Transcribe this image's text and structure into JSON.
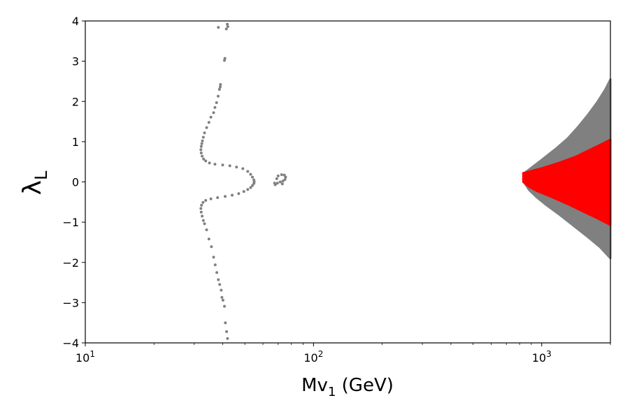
{
  "chart_data": {
    "type": "scatter",
    "xscale": "log",
    "xlim": [
      10,
      2000
    ],
    "ylim": [
      -4,
      4
    ],
    "xlabel_main": "Mv",
    "xlabel_sub": "1",
    "xlabel_unit": " (GeV)",
    "ylabel_main": "λ",
    "ylabel_sub": "L",
    "xticks": [
      {
        "value": 10,
        "base": "10",
        "exp": "1"
      },
      {
        "value": 100,
        "base": "10",
        "exp": "2"
      },
      {
        "value": 1000,
        "base": "10",
        "exp": "3"
      }
    ],
    "yticks": [
      {
        "value": 4,
        "label": "4"
      },
      {
        "value": 3,
        "label": "3"
      },
      {
        "value": 2,
        "label": "2"
      },
      {
        "value": 1,
        "label": "1"
      },
      {
        "value": 0,
        "label": "0"
      },
      {
        "value": -1,
        "label": "−1"
      },
      {
        "value": -2,
        "label": "−2"
      },
      {
        "value": -3,
        "label": "−3"
      },
      {
        "value": -4,
        "label": "−4"
      }
    ],
    "colors": {
      "allowed": "#808080",
      "selected": "#ff0000"
    },
    "series": [
      {
        "color": "#808080",
        "points": [
          [
            41.9,
            3.92
          ],
          [
            42.1,
            3.86
          ],
          [
            41.5,
            3.8
          ],
          [
            38.3,
            3.84
          ],
          [
            40.9,
            3.07
          ],
          [
            40.7,
            3.02
          ],
          [
            39.1,
            2.42
          ],
          [
            39.0,
            2.36
          ],
          [
            38.7,
            2.3
          ],
          [
            38.2,
            2.13
          ],
          [
            37.6,
            1.97
          ],
          [
            37.0,
            1.85
          ],
          [
            36.5,
            1.72
          ],
          [
            35.5,
            1.61
          ],
          [
            34.8,
            1.48
          ],
          [
            34.0,
            1.35
          ],
          [
            33.3,
            1.22
          ],
          [
            32.9,
            1.11
          ],
          [
            32.6,
            1.02
          ],
          [
            32.4,
            0.95
          ],
          [
            32.2,
            0.88
          ],
          [
            32.1,
            0.8
          ],
          [
            32.2,
            0.72
          ],
          [
            32.5,
            0.64
          ],
          [
            33.0,
            0.57
          ],
          [
            33.7,
            0.52
          ],
          [
            35.0,
            0.47
          ],
          [
            37.0,
            0.44
          ],
          [
            40.0,
            0.42
          ],
          [
            43.0,
            0.4
          ],
          [
            46.0,
            0.37
          ],
          [
            49.0,
            0.33
          ],
          [
            51.5,
            0.26
          ],
          [
            53.0,
            0.19
          ],
          [
            54.0,
            0.12
          ],
          [
            54.8,
            0.05
          ],
          [
            55.0,
            0.0
          ],
          [
            54.8,
            -0.04
          ],
          [
            54.0,
            -0.09
          ],
          [
            53.0,
            -0.14
          ],
          [
            51.5,
            -0.19
          ],
          [
            49.5,
            -0.24
          ],
          [
            47.0,
            -0.29
          ],
          [
            44.0,
            -0.33
          ],
          [
            41.0,
            -0.36
          ],
          [
            38.0,
            -0.39
          ],
          [
            35.5,
            -0.42
          ],
          [
            33.7,
            -0.46
          ],
          [
            32.8,
            -0.51
          ],
          [
            32.3,
            -0.58
          ],
          [
            32.1,
            -0.66
          ],
          [
            32.2,
            -0.75
          ],
          [
            32.5,
            -0.85
          ],
          [
            32.9,
            -0.96
          ],
          [
            33.3,
            -1.04
          ],
          [
            34.0,
            -1.19
          ],
          [
            34.8,
            -1.42
          ],
          [
            35.7,
            -1.61
          ],
          [
            36.5,
            -1.87
          ],
          [
            37.1,
            -2.06
          ],
          [
            37.7,
            -2.25
          ],
          [
            38.3,
            -2.43
          ],
          [
            38.8,
            -2.55
          ],
          [
            39.4,
            -2.69
          ],
          [
            39.7,
            -2.87
          ],
          [
            40.1,
            -2.94
          ],
          [
            40.7,
            -3.09
          ],
          [
            41.1,
            -3.5
          ],
          [
            41.6,
            -3.72
          ],
          [
            42.0,
            -3.89
          ],
          [
            70.0,
            0.15
          ],
          [
            72.5,
            0.18
          ],
          [
            74.5,
            0.17
          ],
          [
            75.5,
            0.12
          ],
          [
            75.0,
            0.06
          ],
          [
            73.5,
            0.02
          ],
          [
            71.5,
            0.0
          ],
          [
            69.5,
            -0.03
          ],
          [
            68.0,
            -0.07
          ],
          [
            67.5,
            -0.03
          ],
          [
            69.0,
            0.08
          ],
          [
            73.0,
            -0.05
          ]
        ]
      },
      {
        "color": "#808080",
        "region": {
          "upper": [
            [
              840,
              0.22
            ],
            [
              900,
              0.35
            ],
            [
              1000,
              0.55
            ],
            [
              1150,
              0.82
            ],
            [
              1300,
              1.08
            ],
            [
              1450,
              1.38
            ],
            [
              1600,
              1.68
            ],
            [
              1750,
              1.98
            ],
            [
              1900,
              2.3
            ],
            [
              2000,
              2.55
            ]
          ],
          "lower": [
            [
              840,
              -0.02
            ],
            [
              880,
              -0.2
            ],
            [
              950,
              -0.38
            ],
            [
              1050,
              -0.58
            ],
            [
              1200,
              -0.82
            ],
            [
              1400,
              -1.12
            ],
            [
              1600,
              -1.38
            ],
            [
              1800,
              -1.62
            ],
            [
              2000,
              -1.9
            ]
          ]
        }
      },
      {
        "color": "#ff0000",
        "region": {
          "upper": [
            [
              830,
              0.22
            ],
            [
              900,
              0.27
            ],
            [
              1000,
              0.34
            ],
            [
              1200,
              0.48
            ],
            [
              1400,
              0.62
            ],
            [
              1600,
              0.78
            ],
            [
              1800,
              0.92
            ],
            [
              2000,
              1.05
            ]
          ],
          "lower": [
            [
              830,
              0.0
            ],
            [
              880,
              -0.12
            ],
            [
              950,
              -0.22
            ],
            [
              1100,
              -0.37
            ],
            [
              1300,
              -0.55
            ],
            [
              1500,
              -0.72
            ],
            [
              1750,
              -0.9
            ],
            [
              2000,
              -1.07
            ]
          ]
        }
      }
    ]
  }
}
